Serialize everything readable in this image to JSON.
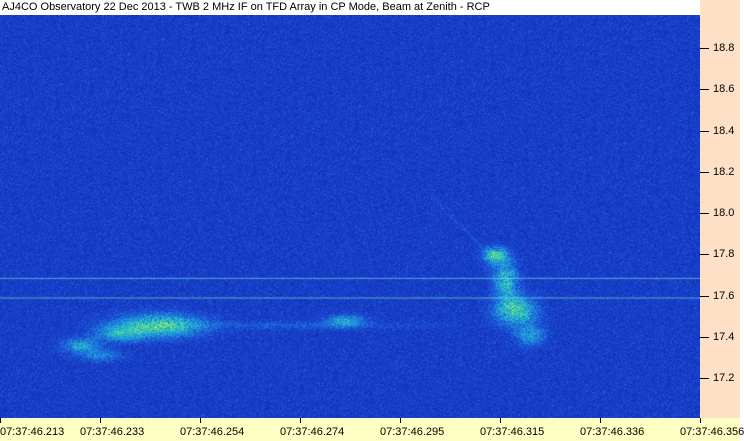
{
  "title": "AJ4CO Observatory 22 Dec 2013 - TWB 2 MHz IF on TFD Array in CP Mode, Beam at Zenith - RCP",
  "chart_data": {
    "type": "heatmap",
    "title": "AJ4CO Observatory 22 Dec 2013 - TWB 2 MHz IF on TFD Array in CP Mode, Beam at Zenith - RCP",
    "x_tick_labels": [
      "07:37:46.213",
      "07:37:46.233",
      "07:37:46.254",
      "07:37:46.274",
      "07:37:46.295",
      "07:37:46.315",
      "07:37:46.336",
      "07:37:46.356"
    ],
    "y_tick_labels": [
      "18.8",
      "18.6",
      "18.4",
      "18.2",
      "18.0",
      "17.8",
      "17.6",
      "17.4",
      "17.2"
    ],
    "y_ticks": [
      18.8,
      18.6,
      18.4,
      18.2,
      18.0,
      17.8,
      17.6,
      17.4,
      17.2
    ],
    "colormap": [
      "#0a1e90",
      "#1a40d0",
      "#20a0e0",
      "#40e0a0",
      "#f0f020"
    ],
    "y_axis_position": "right",
    "colors": {
      "background": "#1232b0",
      "y_axis_panel": "#fde0c6",
      "x_axis_panel": "#ffffc4"
    }
  }
}
